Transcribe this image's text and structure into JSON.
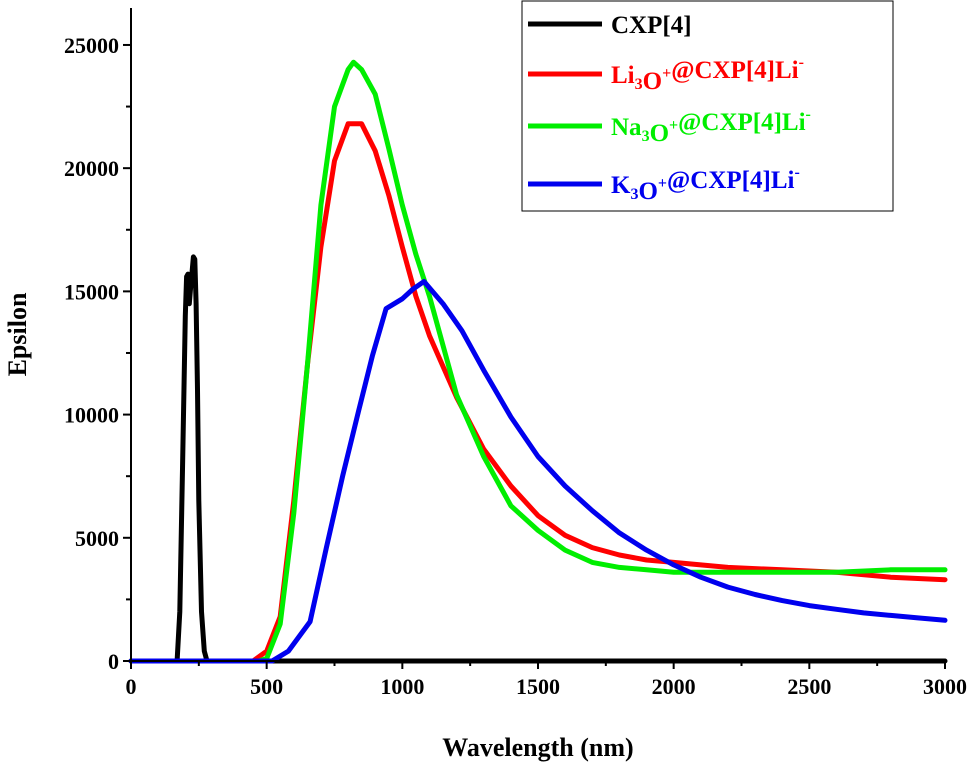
{
  "chart_data": {
    "type": "line",
    "xlabel": "Wavelength (nm)",
    "ylabel": "Epsilon",
    "xlim": [
      0,
      3000
    ],
    "ylim": [
      0,
      26500
    ],
    "xticks": [
      0,
      500,
      1000,
      1500,
      2000,
      2500,
      3000
    ],
    "yticks": [
      0,
      5000,
      10000,
      15000,
      20000,
      25000
    ],
    "grid": false,
    "legend_position": "top-right",
    "series": [
      {
        "name": "CXP[4]",
        "legend_parts": [
          {
            "t": "CXP[4]"
          }
        ],
        "color": "#000000",
        "x": [
          0,
          170,
          180,
          190,
          200,
          205,
          210,
          215,
          220,
          225,
          230,
          235,
          240,
          245,
          250,
          260,
          270,
          280,
          300,
          3000
        ],
        "y": [
          0,
          0,
          2000,
          8000,
          14000,
          15600,
          15700,
          14500,
          15200,
          15800,
          16400,
          16300,
          14500,
          11000,
          6500,
          2000,
          400,
          0,
          0,
          0
        ]
      },
      {
        "name": "Li3O+@CXP[4]Li-",
        "legend_parts": [
          {
            "t": "Li"
          },
          {
            "t": "3",
            "s": "sub"
          },
          {
            "t": "O"
          },
          {
            "t": "+",
            "s": "sup"
          },
          {
            "t": "@CXP[4]Li"
          },
          {
            "t": "-",
            "s": "sup"
          }
        ],
        "color": "#ff0000",
        "x": [
          0,
          450,
          500,
          550,
          600,
          650,
          700,
          750,
          800,
          850,
          900,
          950,
          1000,
          1050,
          1100,
          1200,
          1300,
          1400,
          1500,
          1600,
          1700,
          1800,
          1900,
          2000,
          2100,
          2200,
          2400,
          2600,
          2800,
          3000
        ],
        "y": [
          0,
          0,
          400,
          1800,
          6500,
          12000,
          16800,
          20300,
          21800,
          21800,
          20700,
          18900,
          16800,
          14800,
          13200,
          10700,
          8600,
          7100,
          5900,
          5100,
          4600,
          4300,
          4100,
          4000,
          3900,
          3800,
          3700,
          3600,
          3400,
          3300
        ]
      },
      {
        "name": "Na3O+@CXP[4]Li-",
        "legend_parts": [
          {
            "t": "Na"
          },
          {
            "t": "3",
            "s": "sub"
          },
          {
            "t": "O"
          },
          {
            "t": "+",
            "s": "sup"
          },
          {
            "t": "@CXP[4]Li"
          },
          {
            "t": "-",
            "s": "sup"
          }
        ],
        "color": "#00ee00",
        "x": [
          0,
          470,
          500,
          550,
          600,
          650,
          700,
          750,
          800,
          820,
          850,
          900,
          950,
          1000,
          1050,
          1100,
          1200,
          1300,
          1400,
          1500,
          1600,
          1700,
          1800,
          1900,
          2000,
          2200,
          2400,
          2600,
          2800,
          3000
        ],
        "y": [
          0,
          0,
          100,
          1500,
          6000,
          12000,
          18500,
          22500,
          24000,
          24300,
          24000,
          23000,
          20800,
          18500,
          16500,
          14800,
          10800,
          8300,
          6300,
          5300,
          4500,
          4000,
          3800,
          3700,
          3600,
          3600,
          3600,
          3600,
          3700,
          3700
        ]
      },
      {
        "name": "K3O+@CXP[4]Li-",
        "legend_parts": [
          {
            "t": "K"
          },
          {
            "t": "3",
            "s": "sub"
          },
          {
            "t": "O"
          },
          {
            "t": "+",
            "s": "sup"
          },
          {
            "t": "@CXP[4]Li"
          },
          {
            "t": "-",
            "s": "sup"
          }
        ],
        "color": "#0000ee",
        "x": [
          0,
          520,
          580,
          660,
          720,
          780,
          840,
          890,
          940,
          1000,
          1040,
          1080,
          1150,
          1220,
          1300,
          1400,
          1500,
          1600,
          1700,
          1800,
          1900,
          2000,
          2100,
          2200,
          2300,
          2400,
          2500,
          2600,
          2700,
          2800,
          2900,
          3000
        ],
        "y": [
          0,
          0,
          400,
          1600,
          4600,
          7500,
          10200,
          12400,
          14300,
          14700,
          15100,
          15400,
          14500,
          13400,
          11800,
          9900,
          8300,
          7100,
          6100,
          5200,
          4500,
          3900,
          3400,
          3000,
          2700,
          2450,
          2250,
          2100,
          1950,
          1850,
          1750,
          1650
        ]
      }
    ]
  }
}
